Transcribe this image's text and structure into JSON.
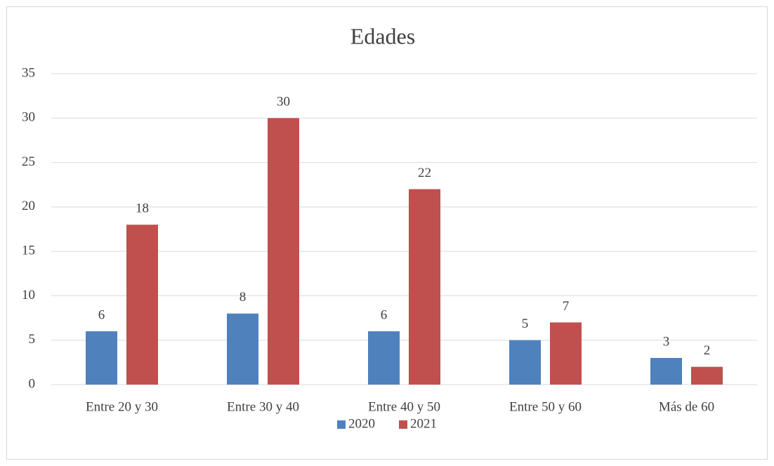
{
  "chart_data": {
    "type": "bar",
    "title": "Edades",
    "categories": [
      "Entre 20 y 30",
      "Entre 30 y 40",
      "Entre 40 y 50",
      "Entre 50 y 60",
      "Más de 60"
    ],
    "series": [
      {
        "name": "2020",
        "color": "#4f81bd",
        "values": [
          6,
          8,
          6,
          5,
          3
        ]
      },
      {
        "name": "2021",
        "color": "#c0504d",
        "values": [
          18,
          30,
          22,
          7,
          2
        ]
      }
    ],
    "ylim": [
      0,
      35
    ],
    "yticks": [
      0,
      5,
      10,
      15,
      20,
      25,
      30,
      35
    ],
    "grid": true,
    "legend": "bottom"
  }
}
